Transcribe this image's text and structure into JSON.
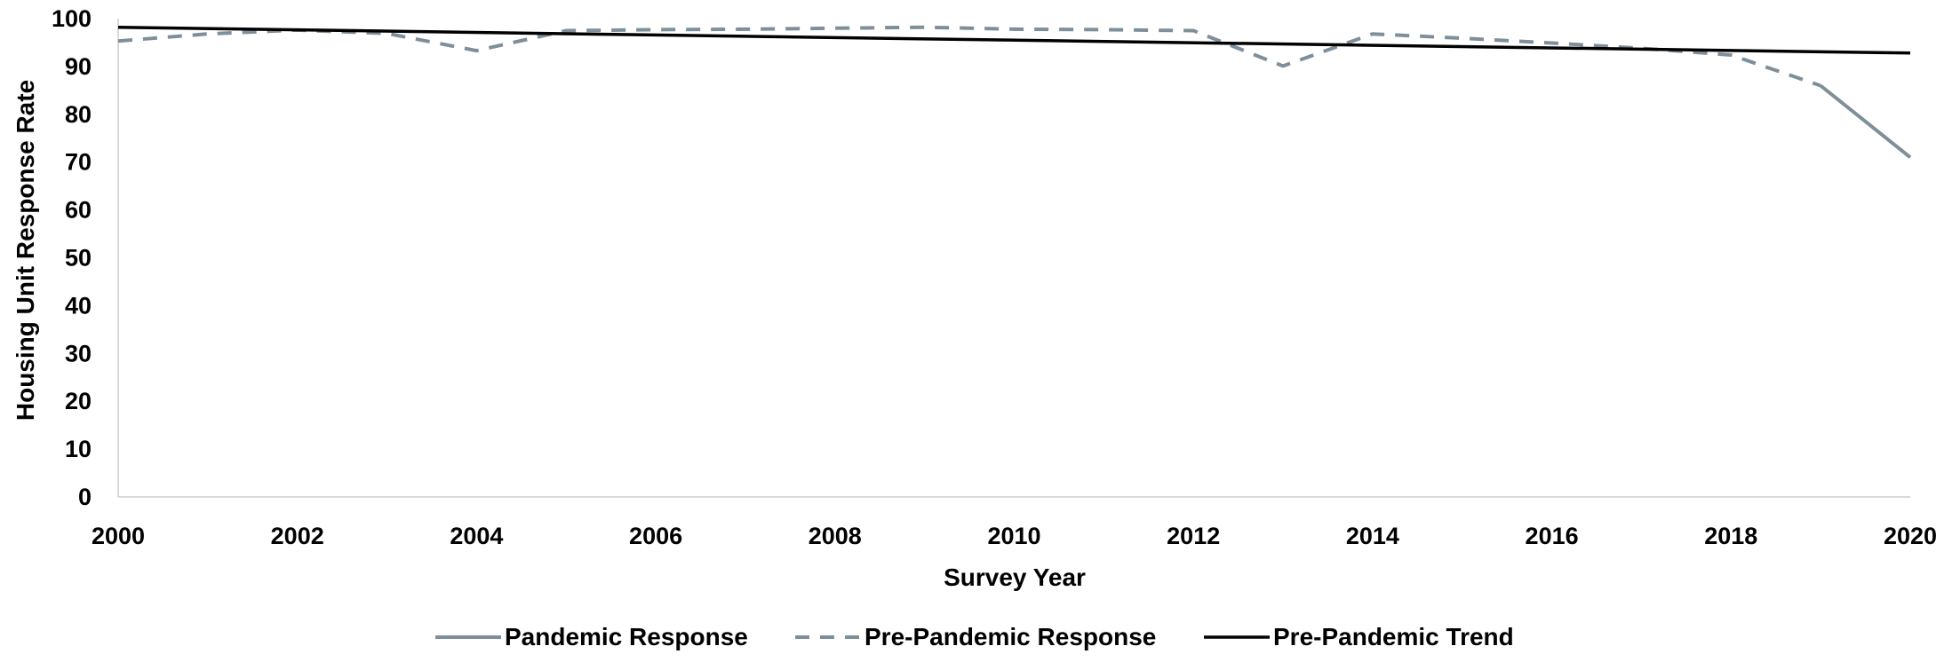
{
  "chart_data": {
    "type": "line",
    "title": "",
    "xlabel": "Survey Year",
    "ylabel": "Housing Unit Response Rate",
    "xlim": [
      2000,
      2020
    ],
    "ylim": [
      0,
      100
    ],
    "x_ticks": [
      "2000",
      "2002",
      "2004",
      "2006",
      "2008",
      "2010",
      "2012",
      "2014",
      "2016",
      "2018",
      "2020"
    ],
    "y_ticks": [
      "0",
      "10",
      "20",
      "30",
      "40",
      "50",
      "60",
      "70",
      "80",
      "90",
      "100"
    ],
    "grid": false,
    "legend_position": "bottom",
    "series": [
      {
        "name": "Pandemic Response",
        "style": "solid",
        "color": "#7f8f99",
        "points": [
          [
            2019,
            86
          ],
          [
            2020,
            71
          ]
        ]
      },
      {
        "name": "Pre-Pandemic Response",
        "style": "dashed",
        "color": "#7f8f99",
        "points": [
          [
            2000,
            95.3
          ],
          [
            2001,
            96.8
          ],
          [
            2002,
            97.6
          ],
          [
            2003,
            96.9
          ],
          [
            2004,
            93.3
          ],
          [
            2005,
            97.5
          ],
          [
            2006,
            97.7
          ],
          [
            2007,
            97.8
          ],
          [
            2008,
            98.0
          ],
          [
            2009,
            98.2
          ],
          [
            2010,
            97.8
          ],
          [
            2011,
            97.7
          ],
          [
            2012,
            97.5
          ],
          [
            2013,
            90.1
          ],
          [
            2014,
            96.8
          ],
          [
            2015,
            95.9
          ],
          [
            2016,
            94.9
          ],
          [
            2017,
            93.8
          ],
          [
            2018,
            92.4
          ],
          [
            2019,
            86.0
          ]
        ]
      },
      {
        "name": "Pre-Pandemic Trend",
        "style": "solid",
        "color": "#000000",
        "points": [
          [
            2000,
            98.2
          ],
          [
            2020,
            92.8
          ]
        ]
      }
    ]
  }
}
